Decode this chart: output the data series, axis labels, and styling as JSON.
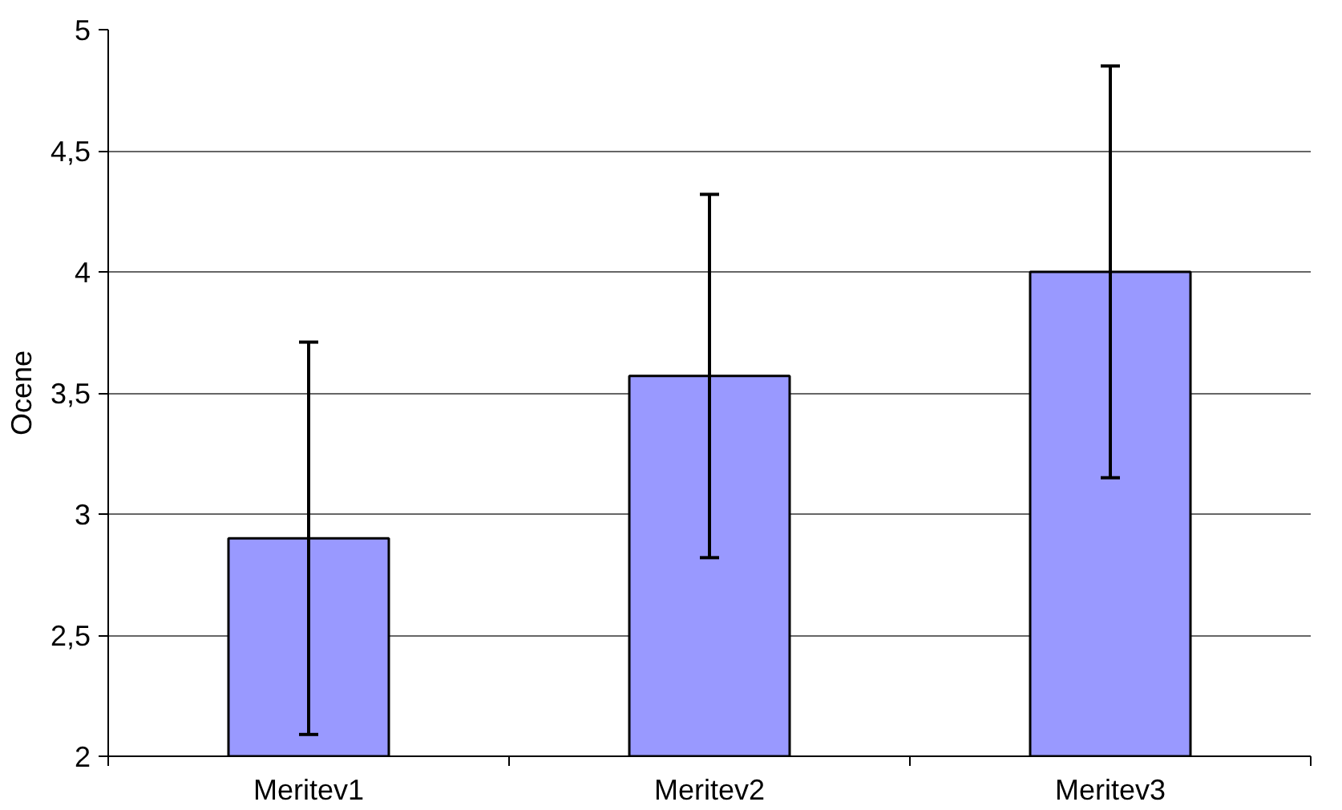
{
  "chart_data": {
    "type": "bar",
    "ylabel": "Ocene",
    "categories": [
      "Meritev1",
      "Meritev2",
      "Meritev3"
    ],
    "values": [
      2.9,
      3.57,
      4.0
    ],
    "errors": [
      0.81,
      0.75,
      0.85
    ],
    "color": "#9999ff",
    "ylim": [
      2,
      5
    ],
    "yticks": [
      2,
      {
        "value": 2.5,
        "label": "2,5"
      },
      3,
      {
        "value": 3.5,
        "label": "3,5"
      },
      4,
      {
        "value": 4.5,
        "label": "4,5"
      },
      5
    ],
    "grid": "y"
  }
}
